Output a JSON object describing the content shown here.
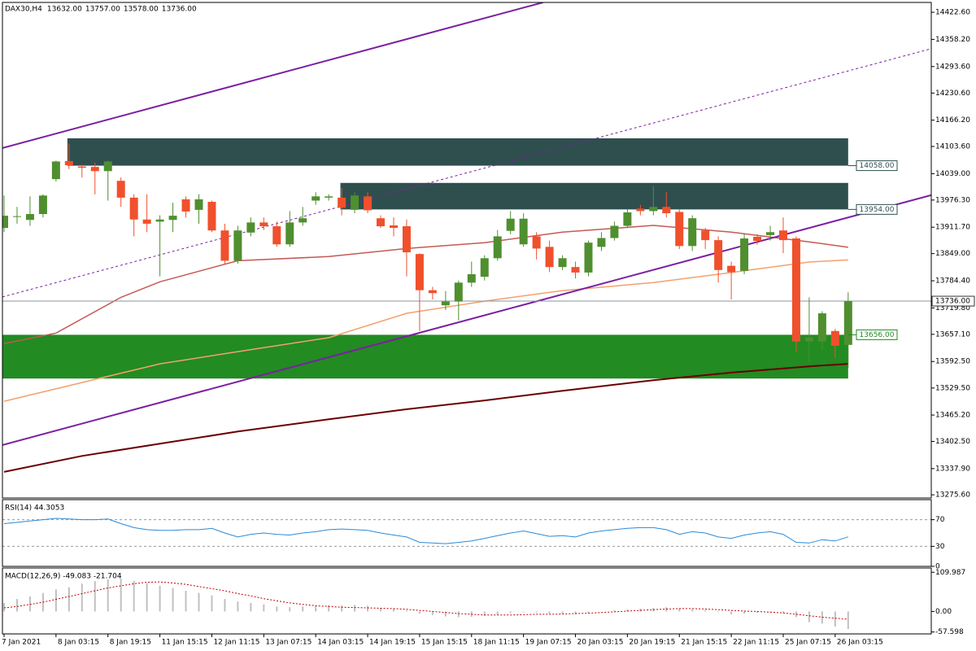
{
  "chart_data": [
    {
      "type": "candlestick",
      "title": "DAX30,H4",
      "ohlc_labels": [
        "13632.00",
        "13757.00",
        "13578.00",
        "13736.00"
      ],
      "categories": [
        "7 Jan 2021",
        null,
        null,
        null,
        "8 Jan 03:15",
        null,
        null,
        null,
        "8 Jan 19:15",
        null,
        null,
        null,
        "11 Jan 15:15",
        null,
        null,
        null,
        "12 Jan 11:15",
        null,
        null,
        null,
        "13 Jan 07:15",
        null,
        null,
        null,
        "14 Jan 03:15",
        null,
        null,
        null,
        "14 Jan 19:15",
        null,
        null,
        null,
        "15 Jan 15:15",
        null,
        null,
        null,
        "18 Jan 11:15",
        null,
        null,
        null,
        "19 Jan 07:15",
        null,
        null,
        null,
        "20 Jan 03:15",
        null,
        null,
        null,
        "20 Jan 19:15",
        null,
        null,
        null,
        "21 Jan 15:15",
        null,
        null,
        null,
        "22 Jan 11:15",
        null,
        null,
        null,
        "25 Jan 07:15",
        null,
        null,
        null,
        "26 Jan 03:15",
        null
      ],
      "open": [
        13910,
        13937,
        13929,
        13943,
        14026,
        14069,
        14056,
        14055,
        14045,
        14022,
        13982,
        13930,
        13925,
        13929,
        13978,
        13953,
        13972,
        13904,
        13832,
        13899,
        13923,
        13914,
        13871,
        13923,
        13975,
        13982,
        13982,
        13953,
        13985,
        13933,
        13916,
        13914,
        13848,
        13762,
        13726,
        13735,
        13780,
        13794,
        13838,
        13903,
        13871,
        13890,
        13865,
        13817,
        13817,
        13804,
        13865,
        13886,
        13915,
        13956,
        13950,
        13960,
        13948,
        13867,
        13904,
        13881,
        13820,
        13808,
        13889,
        13893,
        13904,
        13885,
        13640,
        13640,
        13665,
        13632
      ],
      "high": [
        13987,
        13960,
        13985,
        13990,
        14070,
        14110,
        14060,
        14065,
        14070,
        14030,
        13990,
        13990,
        13940,
        13970,
        13985,
        13990,
        13975,
        13920,
        13915,
        13935,
        13935,
        13925,
        13950,
        13960,
        13995,
        13990,
        14005,
        13995,
        13995,
        13940,
        13935,
        13930,
        13850,
        13770,
        13760,
        13785,
        13830,
        13845,
        13905,
        13950,
        13945,
        13900,
        13880,
        13845,
        13830,
        13880,
        13900,
        13925,
        13955,
        13965,
        14010,
        13995,
        13955,
        13940,
        13910,
        13890,
        13830,
        13895,
        13895,
        13915,
        13935,
        13890,
        13745,
        13712,
        13670,
        13757
      ],
      "low": [
        13900,
        13920,
        13915,
        13935,
        14020,
        14050,
        14030,
        13990,
        13975,
        13960,
        13890,
        13900,
        13795,
        13900,
        13935,
        13920,
        13900,
        13825,
        13825,
        13890,
        13905,
        13865,
        13865,
        13915,
        13965,
        13975,
        13940,
        13945,
        13945,
        13910,
        13890,
        13795,
        13665,
        13740,
        13715,
        13690,
        13770,
        13785,
        13832,
        13895,
        13865,
        13835,
        13805,
        13810,
        13790,
        13795,
        13855,
        13880,
        13910,
        13940,
        13940,
        13935,
        13860,
        13855,
        13860,
        13780,
        13740,
        13800,
        13870,
        13880,
        13850,
        13615,
        13590,
        13620,
        13600,
        13578
      ],
      "close": [
        13939,
        13938,
        13943,
        13987,
        14068,
        14059,
        14053,
        14045,
        14068,
        13982,
        13930,
        13920,
        13930,
        13939,
        13949,
        13978,
        13904,
        13832,
        13904,
        13923,
        13914,
        13871,
        13923,
        13933,
        13985,
        13985,
        13958,
        13987,
        13952,
        13914,
        13910,
        13852,
        13762,
        13755,
        13735,
        13780,
        13800,
        13838,
        13890,
        13932,
        13932,
        13861,
        13817,
        13838,
        13804,
        13875,
        13886,
        13915,
        13947,
        13950,
        13960,
        13945,
        13867,
        13933,
        13881,
        13810,
        13805,
        13885,
        13879,
        13900,
        13881,
        13640,
        13650,
        13707,
        13630,
        13736
      ],
      "up_color": "#4f8f2f",
      "down_color": "#f0502c",
      "xlim": [
        -0.125,
        71.4
      ],
      "ylim": [
        13268,
        14446
      ],
      "yticks": [
        {
          "value": 14422.6,
          "label": "14422.60"
        },
        {
          "value": 14358.2,
          "label": "14358.20"
        },
        {
          "value": 14293.6,
          "label": "14293.60"
        },
        {
          "value": 14230.6,
          "label": "14230.60"
        },
        {
          "value": 14166.2,
          "label": "14166.20"
        },
        {
          "value": 14103.6,
          "label": "14103.60"
        },
        {
          "value": 14039,
          "label": "14039.00"
        },
        {
          "value": 13976.3,
          "label": "13976.30"
        },
        {
          "value": 13911.7,
          "label": "13911.70"
        },
        {
          "value": 13849,
          "label": "13849.00"
        },
        {
          "value": 13784.4,
          "label": "13784.40"
        },
        {
          "value": 13719.8,
          "label": "13719.80"
        },
        {
          "value": 13657.1,
          "label": "13657.10"
        },
        {
          "value": 13592.5,
          "label": "13592.50"
        },
        {
          "value": 13529.5,
          "label": "13529.50"
        },
        {
          "value": 13465.2,
          "label": "13465.20"
        },
        {
          "value": 13402.5,
          "label": "13402.50"
        },
        {
          "value": 13337.9,
          "label": "13337.90"
        },
        {
          "value": 13275.6,
          "label": "13275.60"
        }
      ],
      "zones": [
        {
          "start": 4.88,
          "end": 65,
          "low": 14058,
          "high": 14123,
          "color": "#2f4f4f",
          "label": "14058.00",
          "label_edge": "low"
        },
        {
          "start": 25.9,
          "end": 65,
          "low": 13954,
          "high": 14017,
          "color": "#2f4f4f",
          "label": "13954.00",
          "label_edge": "low"
        },
        {
          "start": -0.125,
          "end": 65,
          "low": 13552,
          "high": 13656,
          "color": "#228b22",
          "label": "13656.00",
          "label_edge": "high"
        }
      ],
      "current_price": {
        "value": 13736,
        "label": "13736.00",
        "color": "#8a96a3"
      },
      "moving_averages": [
        {
          "color": "#c45a55",
          "x": [
            0,
            4,
            9,
            12,
            18,
            25,
            31,
            37,
            43,
            50,
            56,
            62,
            65
          ],
          "values": [
            13635,
            13660,
            13745,
            13782,
            13832,
            13842,
            13861,
            13875,
            13900,
            13916,
            13900,
            13877,
            13864
          ]
        },
        {
          "color": "#f4a06c",
          "x": [
            0,
            12,
            18,
            25,
            31,
            37,
            43,
            50,
            56,
            62,
            65
          ],
          "values": [
            13498,
            13587,
            13616,
            13649,
            13707,
            13736,
            13761,
            13780,
            13804,
            13829,
            13834
          ]
        },
        {
          "color": "#6b0000",
          "x": [
            0,
            6,
            12,
            18,
            25,
            31,
            37,
            43,
            50,
            56,
            62,
            65
          ],
          "values": [
            13330,
            13368,
            13397,
            13426,
            13455,
            13479,
            13500,
            13523,
            13548,
            13566,
            13581,
            13587
          ]
        }
      ],
      "trendlines": [
        {
          "points": [
            [
              -0.125,
              14100
            ],
            [
              41.5,
              14446
            ]
          ],
          "color": "#7b1fa2",
          "dashed": false
        },
        {
          "points": [
            [
              -0.125,
              13746
            ],
            [
              71.4,
              14336
            ]
          ],
          "color": "#7b1fa2",
          "dashed": true
        },
        {
          "points": [
            [
              -0.125,
              13394
            ],
            [
              71.4,
              13988
            ]
          ],
          "color": "#7b1fa2",
          "dashed": false
        }
      ]
    },
    {
      "type": "line",
      "title": "RSI(14) 44.3053",
      "color": "#2b8ad8",
      "grid": true,
      "ylim": [
        0,
        100
      ],
      "yticks": [
        70,
        30,
        0
      ],
      "values": [
        64,
        66,
        68,
        70,
        72,
        71,
        70,
        70,
        71,
        64,
        58,
        55,
        54,
        54,
        55,
        55,
        57,
        50,
        44,
        48,
        50,
        48,
        47,
        50,
        52,
        55,
        56,
        55,
        54,
        50,
        47,
        44,
        36,
        35,
        34,
        36,
        38,
        42,
        46,
        50,
        53,
        49,
        45,
        46,
        44,
        50,
        53,
        55,
        57,
        58,
        58,
        55,
        48,
        52,
        50,
        44,
        42,
        47,
        50,
        52,
        48,
        36,
        35,
        40,
        38,
        44.3053
      ]
    },
    {
      "type": "combo",
      "title": "MACD(12,26,9) -49.083 -21.704",
      "ylim": [
        -63,
        122
      ],
      "yticks": [
        {
          "value": 109.987,
          "label": "109.987"
        },
        {
          "value": 0,
          "label": "0.00"
        },
        {
          "value": -57.598,
          "label": "-57.598"
        }
      ],
      "series": [
        {
          "type": "bar",
          "color": "#c0c0c0",
          "values": [
            24,
            35,
            42,
            52,
            62,
            68,
            78,
            85,
            90,
            92,
            86,
            80,
            72,
            66,
            58,
            52,
            45,
            35,
            28,
            24,
            20,
            14,
            12,
            14,
            16,
            18,
            17,
            18,
            16,
            10,
            8,
            3,
            -6,
            -10,
            -14,
            -16,
            -15,
            -12,
            -9,
            -4,
            -2,
            -3,
            -6,
            -6,
            -8,
            -4,
            0,
            3,
            6,
            8,
            10,
            12,
            8,
            6,
            4,
            -2,
            -8,
            -6,
            -4,
            -2,
            -4,
            -16,
            -30,
            -34,
            -42,
            -49.083
          ]
        },
        {
          "type": "line",
          "color": "#c00000",
          "dashed": true,
          "values": [
            10,
            14,
            20,
            26,
            34,
            42,
            50,
            58,
            66,
            72,
            78,
            82,
            83,
            80,
            76,
            70,
            64,
            58,
            50,
            44,
            36,
            30,
            24,
            20,
            16,
            14,
            12,
            11,
            10,
            9,
            8,
            6,
            3,
            0,
            -3,
            -6,
            -8,
            -10,
            -10,
            -10,
            -9,
            -8,
            -8,
            -7,
            -6,
            -5,
            -3,
            -1,
            1,
            3,
            5,
            7,
            8,
            8,
            7,
            5,
            3,
            1,
            0,
            -2,
            -4,
            -8,
            -12,
            -16,
            -19,
            -21.704
          ]
        }
      ]
    }
  ]
}
